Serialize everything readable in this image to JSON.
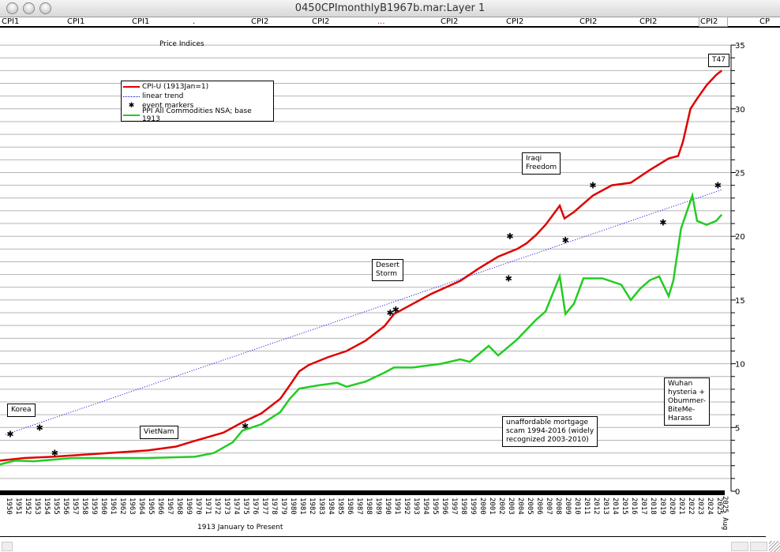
{
  "window": {
    "title": "0450CPImonthlyB1967b.mar:Layer 1"
  },
  "series_bar": [
    {
      "label": "CPI1"
    },
    {
      "label": "CPI1"
    },
    {
      "label": "CPI1"
    },
    {
      "label": "."
    },
    {
      "label": "CPI2"
    },
    {
      "label": "CPI2"
    },
    {
      "label": "...",
      "color": "#e00000"
    },
    {
      "label": "CPI2"
    },
    {
      "label": "CPI2"
    },
    {
      "label": "CPI2"
    },
    {
      "label": "CPI2"
    },
    {
      "label": "CPI2",
      "selected": true
    },
    {
      "label": "CP"
    }
  ],
  "chart_data": {
    "type": "line",
    "title": "Price Indices",
    "xlabel": "1913 January to Present",
    "ylabel": "",
    "xlim": [
      1949.4,
      2025.7
    ],
    "ylim": [
      0,
      35
    ],
    "grid": true,
    "y_ticks": [
      0,
      5,
      10,
      15,
      20,
      25,
      30,
      35
    ],
    "x_tick_labels": [
      "1950",
      "1951",
      "1952",
      "1953",
      "1954",
      "1955",
      "1956",
      "1957",
      "1958",
      "1959",
      "1960",
      "1961",
      "1962",
      "1963",
      "1964",
      "1965",
      "1966",
      "1967",
      "1968",
      "1969",
      "1970",
      "1971",
      "1972",
      "1973",
      "1974",
      "1975",
      "1976",
      "1977",
      "1978",
      "1979",
      "1980",
      "1981",
      "1982",
      "1983",
      "1984",
      "1985",
      "1986",
      "1987",
      "1988",
      "1989",
      "1990",
      "1991",
      "1992",
      "1993",
      "1994",
      "1995",
      "1996",
      "1997",
      "1998",
      "1999",
      "2000",
      "2001",
      "2002",
      "2003",
      "2004",
      "2005",
      "2006",
      "2007",
      "2008",
      "2009",
      "2010",
      "2011",
      "2012",
      "2013",
      "2014",
      "2015",
      "2016",
      "2017",
      "2018",
      "2019",
      "2020",
      "2021",
      "2022",
      "2023",
      "2024",
      "2025"
    ],
    "last_tick_label": "2025 Aug",
    "legend_position": "top-left",
    "series": [
      {
        "name": "CPI-U (1913Jan=1)",
        "color": "#e00000",
        "style": "solid",
        "points": [
          [
            1949.4,
            2.4
          ],
          [
            1952,
            2.6
          ],
          [
            1955,
            2.7
          ],
          [
            1960,
            2.95
          ],
          [
            1965,
            3.2
          ],
          [
            1968,
            3.5
          ],
          [
            1970,
            3.95
          ],
          [
            1973,
            4.6
          ],
          [
            1975,
            5.4
          ],
          [
            1977,
            6.1
          ],
          [
            1979,
            7.25
          ],
          [
            1980,
            8.3
          ],
          [
            1981,
            9.4
          ],
          [
            1982,
            9.9
          ],
          [
            1984,
            10.5
          ],
          [
            1986,
            11.0
          ],
          [
            1988,
            11.8
          ],
          [
            1990,
            12.95
          ],
          [
            1991,
            13.9
          ],
          [
            1993,
            14.7
          ],
          [
            1995,
            15.5
          ],
          [
            1998,
            16.5
          ],
          [
            2000,
            17.5
          ],
          [
            2002,
            18.4
          ],
          [
            2004,
            19.0
          ],
          [
            2005,
            19.45
          ],
          [
            2006,
            20.1
          ],
          [
            2007,
            20.9
          ],
          [
            2008.5,
            22.4
          ],
          [
            2009,
            21.4
          ],
          [
            2010,
            21.9
          ],
          [
            2012,
            23.2
          ],
          [
            2014,
            24.0
          ],
          [
            2016,
            24.2
          ],
          [
            2018,
            25.2
          ],
          [
            2020,
            26.1
          ],
          [
            2021,
            26.3
          ],
          [
            2021.5,
            27.4
          ],
          [
            2022.3,
            30.0
          ],
          [
            2023,
            30.8
          ],
          [
            2024,
            31.85
          ],
          [
            2025,
            32.65
          ],
          [
            2025.6,
            33.0
          ]
        ]
      },
      {
        "name": "linear trend",
        "color": "#0000e0",
        "style": "dotted",
        "points": [
          [
            1950,
            4.45
          ],
          [
            2025.6,
            23.65
          ]
        ]
      },
      {
        "name": "event markers",
        "color": "#000000",
        "style": "markers",
        "points": [
          [
            1950.5,
            4.5
          ],
          [
            1953.6,
            5.0
          ],
          [
            1955.2,
            3.0
          ],
          [
            1975.3,
            5.1
          ],
          [
            1990.6,
            14.0
          ],
          [
            1991.2,
            14.25
          ],
          [
            2003.25,
            20.0
          ],
          [
            2003.1,
            16.7
          ],
          [
            2009.1,
            19.7
          ],
          [
            2012,
            24.0
          ],
          [
            2019.4,
            21.1
          ],
          [
            2025.2,
            24.0
          ]
        ]
      },
      {
        "name": "PPI All Commodities NSA; base 1913",
        "color": "#22cc22",
        "style": "solid",
        "points": [
          [
            1949.4,
            2.1
          ],
          [
            1951,
            2.4
          ],
          [
            1953,
            2.35
          ],
          [
            1957,
            2.6
          ],
          [
            1965,
            2.6
          ],
          [
            1970,
            2.7
          ],
          [
            1972,
            3.0
          ],
          [
            1974,
            3.85
          ],
          [
            1975,
            4.75
          ],
          [
            1977,
            5.25
          ],
          [
            1979,
            6.2
          ],
          [
            1980,
            7.25
          ],
          [
            1981,
            8.05
          ],
          [
            1983,
            8.3
          ],
          [
            1985,
            8.5
          ],
          [
            1986,
            8.2
          ],
          [
            1988,
            8.6
          ],
          [
            1990,
            9.3
          ],
          [
            1991,
            9.7
          ],
          [
            1993,
            9.7
          ],
          [
            1996,
            10.0
          ],
          [
            1998,
            10.35
          ],
          [
            1999,
            10.15
          ],
          [
            2001,
            11.4
          ],
          [
            2002,
            10.65
          ],
          [
            2004,
            11.9
          ],
          [
            2006,
            13.45
          ],
          [
            2007,
            14.1
          ],
          [
            2008.5,
            16.85
          ],
          [
            2009.1,
            13.9
          ],
          [
            2010,
            14.7
          ],
          [
            2011,
            16.7
          ],
          [
            2013,
            16.7
          ],
          [
            2015,
            16.2
          ],
          [
            2016,
            15.0
          ],
          [
            2017,
            15.9
          ],
          [
            2018,
            16.55
          ],
          [
            2019,
            16.85
          ],
          [
            2020,
            15.3
          ],
          [
            2020.5,
            16.55
          ],
          [
            2021.3,
            20.6
          ],
          [
            2022.5,
            23.2
          ],
          [
            2023,
            21.2
          ],
          [
            2024,
            20.9
          ],
          [
            2025,
            21.2
          ],
          [
            2025.6,
            21.7
          ]
        ]
      }
    ],
    "annotations": [
      {
        "id": "korea",
        "text": "Korea"
      },
      {
        "id": "vietnam",
        "text": "VietNam"
      },
      {
        "id": "desert-storm",
        "text": "Desert\nStorm"
      },
      {
        "id": "iraqi-freedom",
        "text": "Iraqi\nFreedom"
      },
      {
        "id": "mortgage",
        "text": "unaffordable mortgage\nscam 1994-2016 (widely\nrecognized 2003-2010)"
      },
      {
        "id": "wuhan",
        "text": "Wuhan\nhysteria +\nObummer-\nBiteMe-\nHarass"
      },
      {
        "id": "t47",
        "text": "T47"
      }
    ]
  }
}
